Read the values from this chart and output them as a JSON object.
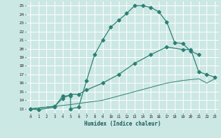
{
  "xlabel": "Humidex (Indice chaleur)",
  "bg_color": "#cce8e4",
  "line_color": "#2d7f74",
  "grid_color": "#ffffff",
  "xlim": [
    -0.5,
    23.5
  ],
  "ylim": [
    12.5,
    25.5
  ],
  "xticks": [
    0,
    1,
    2,
    3,
    4,
    5,
    6,
    7,
    8,
    9,
    10,
    11,
    12,
    13,
    14,
    15,
    16,
    17,
    18,
    19,
    20,
    21,
    22,
    23
  ],
  "yticks": [
    13,
    14,
    15,
    16,
    17,
    18,
    19,
    20,
    21,
    22,
    23,
    24,
    25
  ],
  "line1_x": [
    0,
    1,
    3,
    4,
    5,
    5,
    6,
    7,
    8,
    9,
    10,
    11,
    12,
    13,
    14,
    15,
    16,
    17,
    18,
    19,
    20,
    21
  ],
  "line1_y": [
    13,
    12.9,
    13.2,
    14.5,
    14.5,
    13.0,
    13.2,
    16.3,
    19.3,
    21.0,
    22.5,
    23.3,
    24.1,
    25.0,
    25.0,
    24.8,
    24.3,
    23.1,
    20.7,
    20.6,
    19.7,
    19.3
  ],
  "line2_x": [
    0,
    3,
    4,
    5,
    6,
    7,
    9,
    11,
    13,
    15,
    17,
    19,
    20,
    21,
    22,
    23
  ],
  "line2_y": [
    13,
    13.3,
    14.2,
    14.7,
    14.7,
    15.2,
    16.0,
    17.0,
    18.3,
    19.3,
    20.2,
    19.9,
    19.9,
    17.3,
    17.0,
    16.7
  ],
  "line3_x": [
    0,
    5,
    9,
    11,
    13,
    15,
    17,
    19,
    21,
    22,
    23
  ],
  "line3_y": [
    13.0,
    13.5,
    14.0,
    14.5,
    15.0,
    15.5,
    16.0,
    16.3,
    16.5,
    16.0,
    16.5
  ],
  "markersize": 2.5,
  "linewidth": 0.9,
  "linewidth_thin": 0.7
}
